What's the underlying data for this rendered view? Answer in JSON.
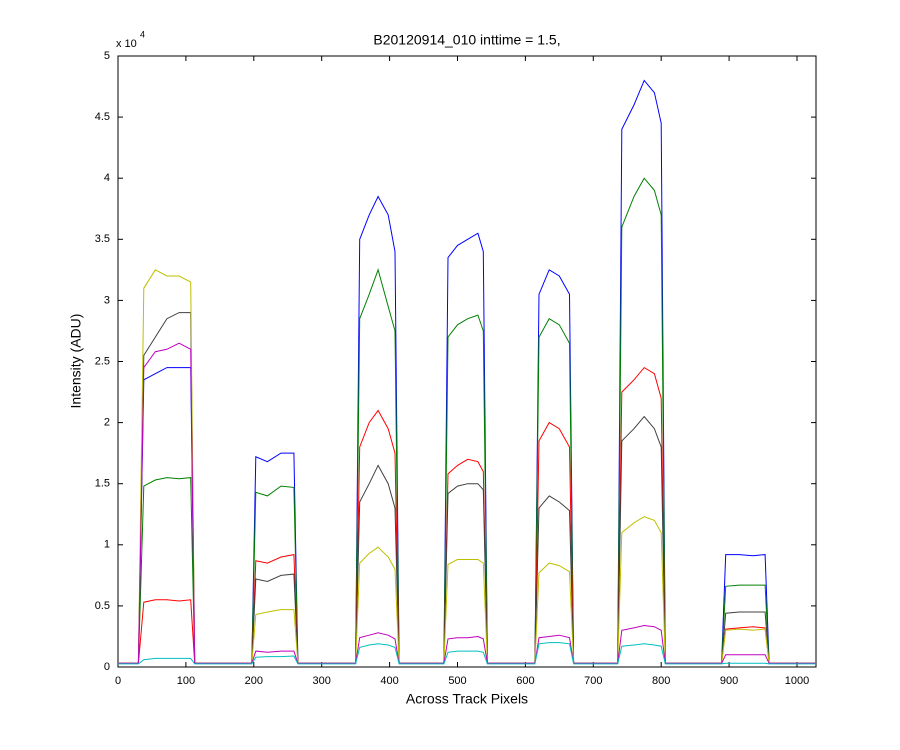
{
  "chart_data": {
    "type": "line",
    "title": "B20120914_010 inttime = 1.5,",
    "x_label": "Across Track Pixels",
    "y_label": "Intensity (ADU)",
    "y_multiplier": "x 10",
    "y_multiplier_exponent": "4",
    "x": [
      0,
      30,
      38,
      55,
      72,
      90,
      107,
      113,
      197,
      203,
      220,
      240,
      259,
      265,
      350,
      356,
      370,
      383,
      398,
      408,
      414,
      480,
      486,
      500,
      515,
      530,
      538,
      544,
      614,
      620,
      635,
      650,
      665,
      671,
      736,
      742,
      760,
      775,
      790,
      800,
      806,
      889,
      895,
      915,
      935,
      953,
      959,
      1028
    ],
    "xlim": [
      0,
      1028
    ],
    "xticks": [
      0,
      100,
      200,
      300,
      400,
      500,
      600,
      700,
      800,
      900,
      1000
    ],
    "ylim": [
      0,
      50000
    ],
    "yticks": [
      {
        "value": 0,
        "label": "0"
      },
      {
        "value": 5000,
        "label": "0.5"
      },
      {
        "value": 10000,
        "label": "1"
      },
      {
        "value": 15000,
        "label": "1.5"
      },
      {
        "value": 20000,
        "label": "2"
      },
      {
        "value": 25000,
        "label": "2.5"
      },
      {
        "value": 30000,
        "label": "3"
      },
      {
        "value": 35000,
        "label": "3.5"
      },
      {
        "value": 40000,
        "label": "4"
      },
      {
        "value": 45000,
        "label": "4.5"
      },
      {
        "value": 50000,
        "label": "5"
      }
    ],
    "grid": false,
    "series": [
      {
        "color": "#0000ff",
        "values": [
          300,
          300,
          23500,
          24000,
          24500,
          24500,
          24500,
          300,
          300,
          17200,
          16800,
          17500,
          17500,
          300,
          300,
          35000,
          37000,
          38500,
          37000,
          34000,
          300,
          300,
          33500,
          34500,
          35000,
          35500,
          34000,
          300,
          300,
          30500,
          32500,
          32000,
          30500,
          300,
          300,
          44000,
          46000,
          48000,
          47000,
          44500,
          300,
          300,
          9200,
          9200,
          9100,
          9200,
          300,
          300
        ]
      },
      {
        "color": "#008000",
        "values": [
          300,
          300,
          14800,
          15300,
          15500,
          15400,
          15500,
          300,
          300,
          14300,
          14000,
          14800,
          14700,
          300,
          300,
          28500,
          30500,
          32500,
          29500,
          27500,
          300,
          300,
          27000,
          28000,
          28500,
          28800,
          27500,
          300,
          300,
          27000,
          28500,
          28000,
          26500,
          300,
          300,
          36000,
          38500,
          40000,
          39000,
          37000,
          300,
          300,
          6600,
          6700,
          6700,
          6700,
          300,
          300
        ]
      },
      {
        "color": "#ff0000",
        "values": [
          300,
          300,
          5300,
          5500,
          5500,
          5400,
          5500,
          300,
          300,
          8700,
          8500,
          9000,
          9200,
          300,
          300,
          18000,
          20000,
          21000,
          19500,
          17500,
          300,
          300,
          15800,
          16500,
          17000,
          16800,
          16000,
          300,
          300,
          18500,
          20000,
          19500,
          18000,
          300,
          300,
          22500,
          23500,
          24500,
          24000,
          22000,
          300,
          300,
          3100,
          3200,
          3300,
          3200,
          300,
          300
        ]
      },
      {
        "color": "#404040",
        "values": [
          300,
          300,
          25500,
          27000,
          28500,
          29000,
          29000,
          300,
          300,
          7200,
          7000,
          7500,
          7600,
          300,
          300,
          13500,
          15000,
          16500,
          15000,
          13000,
          300,
          300,
          14200,
          14800,
          15000,
          15000,
          14500,
          300,
          300,
          13000,
          14000,
          13500,
          12800,
          300,
          300,
          18500,
          19500,
          20500,
          19500,
          18000,
          300,
          300,
          4400,
          4500,
          4500,
          4500,
          300,
          300
        ]
      },
      {
        "color": "#bfbf00",
        "values": [
          300,
          300,
          31000,
          32500,
          32000,
          32000,
          31500,
          300,
          300,
          4300,
          4500,
          4700,
          4700,
          300,
          300,
          8500,
          9300,
          9800,
          9000,
          8000,
          300,
          300,
          8400,
          8800,
          8800,
          8800,
          8500,
          300,
          300,
          7700,
          8500,
          8300,
          7800,
          300,
          300,
          11000,
          11800,
          12300,
          12000,
          11000,
          300,
          300,
          3000,
          3100,
          3000,
          3100,
          300,
          300
        ]
      },
      {
        "color": "#bf00bf",
        "values": [
          300,
          300,
          24500,
          25800,
          26000,
          26500,
          26000,
          300,
          300,
          1300,
          1200,
          1300,
          1300,
          300,
          300,
          2400,
          2600,
          2800,
          2600,
          2300,
          300,
          300,
          2300,
          2400,
          2400,
          2500,
          2300,
          300,
          300,
          2400,
          2500,
          2600,
          2400,
          300,
          300,
          3000,
          3200,
          3400,
          3300,
          3000,
          300,
          300,
          1000,
          1000,
          1000,
          1000,
          300,
          300
        ]
      },
      {
        "color": "#00bfbf",
        "values": [
          250,
          250,
          600,
          700,
          700,
          700,
          700,
          250,
          250,
          800,
          850,
          850,
          900,
          250,
          250,
          1600,
          1800,
          1900,
          1800,
          1600,
          250,
          250,
          1200,
          1300,
          1300,
          1300,
          1200,
          250,
          250,
          1900,
          2000,
          2000,
          1900,
          250,
          250,
          1700,
          1800,
          1900,
          1800,
          1700,
          250,
          250,
          300,
          300,
          300,
          300,
          250,
          250
        ]
      }
    ]
  }
}
